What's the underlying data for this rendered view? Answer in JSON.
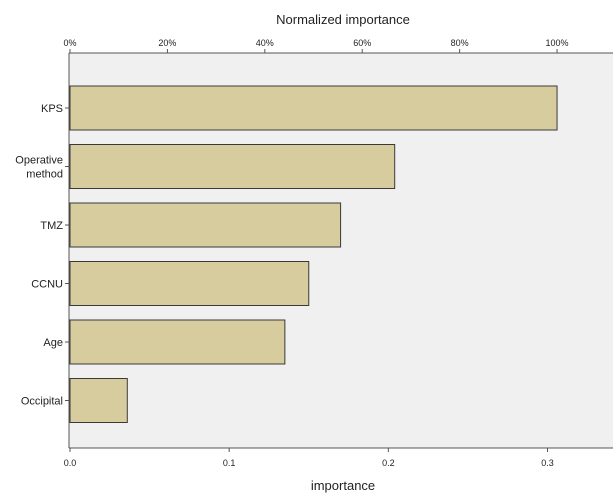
{
  "chart_data": {
    "type": "bar",
    "orientation": "horizontal",
    "categories": [
      "KPS",
      "Operative\nmethod",
      "TMZ",
      "CCNU",
      "Age",
      "Occipital"
    ],
    "values": [
      0.306,
      0.204,
      0.17,
      0.15,
      0.135,
      0.036
    ],
    "xlabel": "importance",
    "xlim": [
      0,
      0.34
    ],
    "x_ticks": [
      0.0,
      0.1,
      0.2,
      0.3
    ],
    "x_tick_labels": [
      "0.0",
      "0.1",
      "0.2",
      "0.3"
    ],
    "top_axis": {
      "label": "Normalized importance",
      "max_value_at_100_percent": 0.306,
      "ticks": [
        0,
        20,
        40,
        60,
        80,
        100
      ],
      "tick_labels": [
        "0%",
        "20%",
        "40%",
        "60%",
        "80%",
        "100%"
      ]
    },
    "grid": false,
    "legend": "none",
    "colors": {
      "bar_fill": "#d6cc9e",
      "bar_stroke": "#3a3a3a",
      "plot_background": "#f0f0f0",
      "axis": "#555555"
    }
  }
}
